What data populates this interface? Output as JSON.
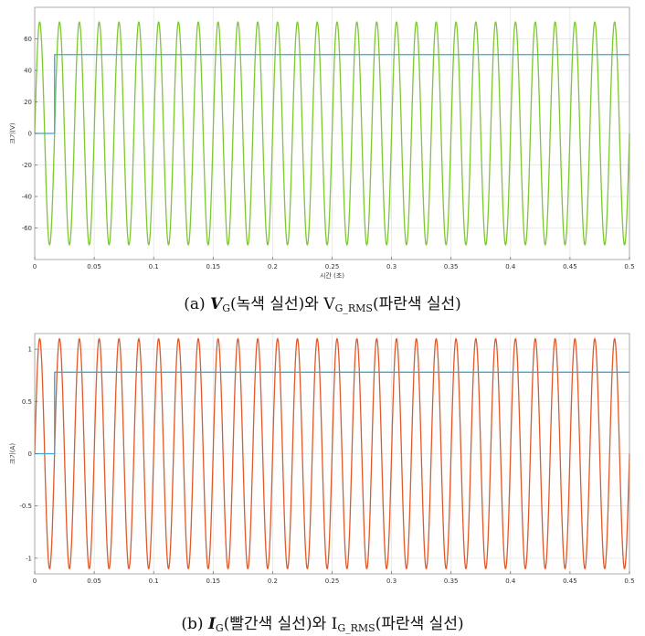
{
  "chart_data": [
    {
      "type": "line",
      "title": "",
      "xlabel": "시간 (초)",
      "ylabel": "크기(V)",
      "xlim": [
        0,
        0.5
      ],
      "ylim": [
        -80,
        80
      ],
      "xticks": [
        0,
        0.05,
        0.1,
        0.15,
        0.2,
        0.25,
        0.3,
        0.35,
        0.4,
        0.45,
        0.5
      ],
      "xtick_labels": [
        "0",
        "0.05",
        "0.1",
        "0.15",
        "0.2",
        "0.25",
        "0.3",
        "0.35",
        "0.4",
        "0.45",
        "0.5"
      ],
      "yticks": [
        -60,
        -40,
        -20,
        0,
        20,
        40,
        60
      ],
      "ytick_labels": [
        "-60",
        "-40",
        "-20",
        "0",
        "20",
        "40",
        "60"
      ],
      "grid": true,
      "series": [
        {
          "kind": "sine",
          "amplitude": 70.7,
          "frequency_hz": 60,
          "phase_deg": 0,
          "color": "#7ec832"
        },
        {
          "kind": "step",
          "step_time": 0.0167,
          "before": 0,
          "after": 50,
          "color": "#3aa8d8"
        }
      ]
    },
    {
      "type": "line",
      "title": "",
      "xlabel": "",
      "ylabel": "크기(A)",
      "xlim": [
        0,
        0.5
      ],
      "ylim": [
        -1.15,
        1.15
      ],
      "xticks": [
        0,
        0.05,
        0.1,
        0.15,
        0.2,
        0.25,
        0.3,
        0.35,
        0.4,
        0.45,
        0.5
      ],
      "xtick_labels": [
        "0",
        "0.05",
        "0.1",
        "0.15",
        "0.2",
        "0.25",
        "0.3",
        "0.35",
        "0.4",
        "0.45",
        "0.5"
      ],
      "yticks": [
        -1,
        -0.5,
        0,
        0.5,
        1
      ],
      "ytick_labels": [
        "-1",
        "-0.5",
        "0",
        "0.5",
        "1"
      ],
      "grid": true,
      "series": [
        {
          "kind": "sine",
          "amplitude": 1.1,
          "frequency_hz": 60,
          "phase_deg": 0,
          "color": "#e05a2b"
        },
        {
          "kind": "step",
          "step_time": 0.0167,
          "before": 0,
          "after": 0.78,
          "color": "#3aa8d8"
        }
      ]
    }
  ],
  "captions": {
    "a": {
      "prefix": "(a) ",
      "sym": "V",
      "sym_sub": "G",
      "mid": "(녹색 실선)와 V",
      "mid_sub": "G_RMS",
      "suffix": "(파란색 실선)"
    },
    "b": {
      "prefix": "(b) ",
      "sym": "I",
      "sym_sub": "G",
      "mid": "(빨간색 실선)와 I",
      "mid_sub": "G_RMS",
      "suffix": "(파란색 실선)"
    }
  }
}
